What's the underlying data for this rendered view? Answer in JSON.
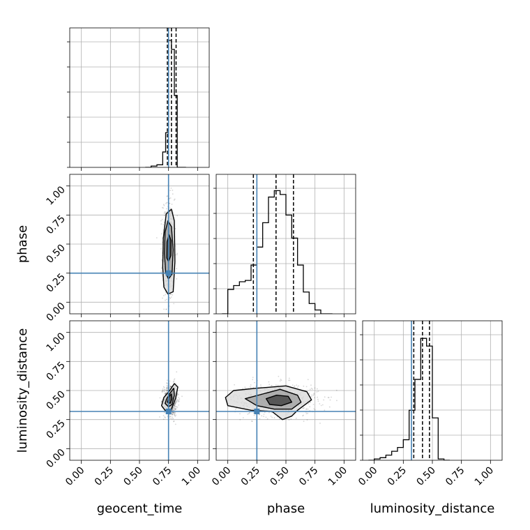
{
  "chart_data": {
    "type": "corner",
    "params": [
      "geocent_time",
      "phase",
      "luminosity_distance"
    ],
    "axis_labels": [
      "geocent_time",
      "phase",
      "luminosity_distance"
    ],
    "lim": [
      -0.1,
      1.1
    ],
    "tick_values": [
      0.0,
      0.25,
      0.5,
      0.75,
      1.0
    ],
    "tick_labels": [
      "0.00",
      "0.25",
      "0.50",
      "0.75",
      "1.00"
    ],
    "grid": true,
    "colors": {
      "truth": "#4682b4",
      "hist": "#000000",
      "grid": "#b0b0b0",
      "frame": "#000000"
    },
    "truths": [
      0.75,
      0.25,
      0.32
    ],
    "quantiles": [
      [
        0.74,
        0.775,
        0.815
      ],
      [
        0.22,
        0.415,
        0.565
      ],
      [
        0.34,
        0.415,
        0.475
      ]
    ],
    "histograms": [
      {
        "param": "geocent_time",
        "bin_edges": [
          0.55,
          0.6,
          0.65,
          0.7,
          0.725,
          0.75,
          0.775,
          0.8,
          0.825,
          0.85,
          0.9
        ],
        "counts": [
          0.0,
          0.01,
          0.02,
          0.12,
          0.27,
          0.99,
          0.92,
          0.56,
          0.0,
          0.0
        ]
      },
      {
        "param": "phase",
        "bin_edges": [
          -0.05,
          0.0,
          0.05,
          0.1,
          0.15,
          0.2,
          0.25,
          0.3,
          0.35,
          0.4,
          0.45,
          0.5,
          0.55,
          0.6,
          0.65,
          0.7,
          0.75,
          0.8,
          0.85,
          0.9
        ],
        "counts": [
          0.0,
          0.19,
          0.22,
          0.25,
          0.26,
          0.38,
          0.52,
          0.71,
          0.91,
          0.96,
          0.93,
          0.77,
          0.59,
          0.38,
          0.17,
          0.08,
          0.03,
          0.0,
          0.0
        ]
      },
      {
        "param": "luminosity_distance",
        "bin_edges": [
          -0.05,
          0.0,
          0.05,
          0.1,
          0.15,
          0.2,
          0.25,
          0.3,
          0.35,
          0.4,
          0.45,
          0.5,
          0.55,
          0.6,
          0.65
        ],
        "counts": [
          0.0,
          0.01,
          0.02,
          0.04,
          0.07,
          0.1,
          0.16,
          0.39,
          0.63,
          0.95,
          0.89,
          0.33,
          0.01,
          0.0
        ]
      }
    ],
    "contours_2d": [
      {
        "x_param": "geocent_time",
        "y_param": "phase",
        "points_center": [
          0.75,
          0.45
        ],
        "points_spread": [
          0.025,
          0.22
        ],
        "levels": [
          [
            [
              0.71,
              0.13
            ],
            [
              0.745,
              0.07
            ],
            [
              0.79,
              0.09
            ],
            [
              0.805,
              0.35
            ],
            [
              0.8,
              0.7
            ],
            [
              0.775,
              0.8
            ],
            [
              0.73,
              0.76
            ],
            [
              0.705,
              0.55
            ],
            [
              0.7,
              0.3
            ]
          ],
          [
            [
              0.725,
              0.25
            ],
            [
              0.75,
              0.2
            ],
            [
              0.78,
              0.24
            ],
            [
              0.79,
              0.45
            ],
            [
              0.775,
              0.65
            ],
            [
              0.745,
              0.7
            ],
            [
              0.72,
              0.6
            ],
            [
              0.715,
              0.42
            ]
          ],
          [
            [
              0.735,
              0.38
            ],
            [
              0.75,
              0.35
            ],
            [
              0.77,
              0.4
            ],
            [
              0.772,
              0.53
            ],
            [
              0.755,
              0.58
            ],
            [
              0.737,
              0.52
            ]
          ]
        ]
      },
      {
        "x_param": "geocent_time",
        "y_param": "luminosity_distance",
        "points_center": [
          0.77,
          0.42
        ],
        "points_spread": [
          0.03,
          0.07
        ],
        "levels": [
          [
            [
              0.69,
              0.37
            ],
            [
              0.72,
              0.33
            ],
            [
              0.77,
              0.33
            ],
            [
              0.81,
              0.43
            ],
            [
              0.83,
              0.53
            ],
            [
              0.8,
              0.56
            ],
            [
              0.76,
              0.5
            ],
            [
              0.71,
              0.44
            ]
          ],
          [
            [
              0.72,
              0.39
            ],
            [
              0.75,
              0.36
            ],
            [
              0.78,
              0.38
            ],
            [
              0.8,
              0.46
            ],
            [
              0.795,
              0.52
            ],
            [
              0.765,
              0.48
            ],
            [
              0.735,
              0.43
            ]
          ],
          [
            [
              0.74,
              0.4
            ],
            [
              0.765,
              0.39
            ],
            [
              0.78,
              0.43
            ],
            [
              0.775,
              0.47
            ],
            [
              0.755,
              0.45
            ]
          ]
        ]
      },
      {
        "x_param": "phase",
        "y_param": "luminosity_distance",
        "points_center": [
          0.42,
          0.42
        ],
        "points_spread": [
          0.18,
          0.07
        ],
        "levels": [
          [
            [
              -0.02,
              0.44
            ],
            [
              0.05,
              0.5
            ],
            [
              0.25,
              0.52
            ],
            [
              0.5,
              0.54
            ],
            [
              0.68,
              0.49
            ],
            [
              0.72,
              0.42
            ],
            [
              0.6,
              0.33
            ],
            [
              0.55,
              0.28
            ],
            [
              0.47,
              0.25
            ],
            [
              0.38,
              0.32
            ],
            [
              0.2,
              0.33
            ],
            [
              0.0,
              0.37
            ]
          ],
          [
            [
              0.15,
              0.43
            ],
            [
              0.3,
              0.47
            ],
            [
              0.45,
              0.51
            ],
            [
              0.6,
              0.46
            ],
            [
              0.63,
              0.4
            ],
            [
              0.55,
              0.34
            ],
            [
              0.4,
              0.34
            ],
            [
              0.25,
              0.37
            ]
          ],
          [
            [
              0.33,
              0.43
            ],
            [
              0.42,
              0.46
            ],
            [
              0.52,
              0.45
            ],
            [
              0.55,
              0.4
            ],
            [
              0.46,
              0.37
            ],
            [
              0.36,
              0.38
            ]
          ]
        ]
      }
    ]
  }
}
